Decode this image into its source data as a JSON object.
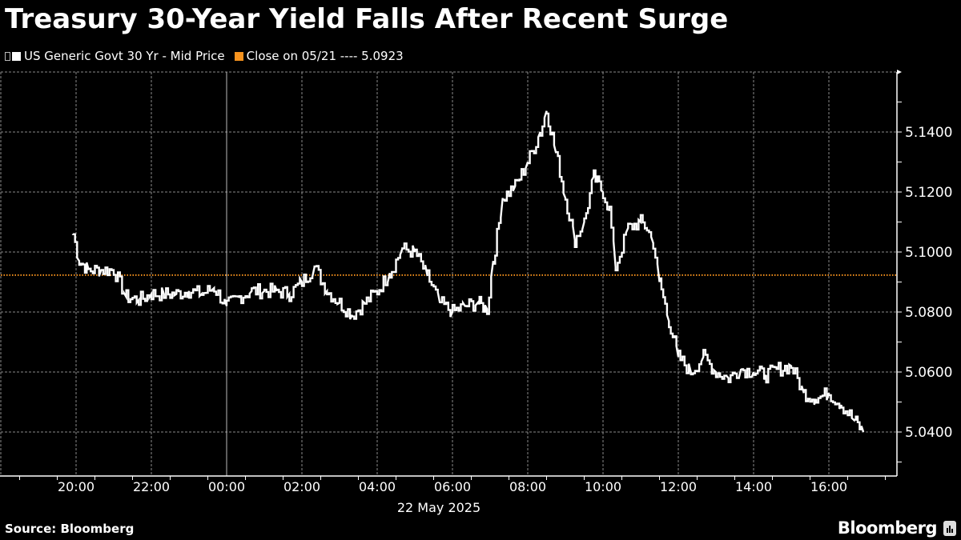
{
  "header": {
    "title": "Treasury 30-Year Yield Falls After Recent Surge"
  },
  "legend": {
    "items": [
      {
        "label": "US Generic Govt 30 Yr - Mid Price",
        "color": "#ffffff"
      },
      {
        "label": "Close on 05/21 ---- 5.0923",
        "color": "#f7931e"
      }
    ]
  },
  "footer": {
    "source": "Source: Bloomberg",
    "brand": "Bloomberg"
  },
  "colors": {
    "background": "#000000",
    "series": "#ffffff",
    "close_line": "#f7931e",
    "grid": "#8a8a8a"
  },
  "chart_data": {
    "type": "line",
    "title": "Treasury 30-Year Yield Falls After Recent Surge",
    "xlabel": "22 May 2025",
    "ylabel": "",
    "y_axis_position": "right",
    "ylim": [
      5.027,
      5.1625
    ],
    "yticks": [
      "5.0400",
      "5.0600",
      "5.0800",
      "5.1000",
      "5.1200",
      "5.1400"
    ],
    "xticks": [
      "20:00",
      "22:00",
      "00:00",
      "02:00",
      "04:00",
      "06:00",
      "08:00",
      "10:00",
      "12:00",
      "14:00",
      "16:00"
    ],
    "date_label": "22 May 2025",
    "grid": true,
    "legend_position": "top-left",
    "reference_line": {
      "label": "Close on 05/21",
      "value": 5.0923,
      "style": "dotted",
      "color": "#f7931e"
    },
    "series": [
      {
        "name": "US Generic Govt 30 Yr - Mid Price",
        "x": [
          "19:55",
          "20:05",
          "20:20",
          "20:40",
          "21:00",
          "21:20",
          "21:40",
          "22:00",
          "22:20",
          "22:40",
          "23:00",
          "23:20",
          "23:40",
          "00:00",
          "00:20",
          "00:40",
          "01:00",
          "01:20",
          "01:40",
          "02:00",
          "02:20",
          "02:40",
          "03:00",
          "03:20",
          "03:40",
          "04:00",
          "04:20",
          "04:40",
          "05:00",
          "05:20",
          "05:40",
          "06:00",
          "06:20",
          "06:40",
          "06:55",
          "07:05",
          "07:20",
          "07:40",
          "08:00",
          "08:20",
          "08:30",
          "08:45",
          "09:00",
          "09:15",
          "09:30",
          "09:45",
          "10:00",
          "10:10",
          "10:20",
          "10:40",
          "11:00",
          "11:10",
          "11:20",
          "11:30",
          "11:45",
          "12:00",
          "12:20",
          "12:40",
          "13:00",
          "13:20",
          "13:40",
          "14:00",
          "14:20",
          "14:40",
          "15:00",
          "15:20",
          "15:40",
          "16:00",
          "16:20",
          "16:40",
          "16:55"
        ],
        "values": [
          5.106,
          5.097,
          5.094,
          5.094,
          5.094,
          5.085,
          5.084,
          5.086,
          5.086,
          5.086,
          5.087,
          5.086,
          5.088,
          5.082,
          5.085,
          5.087,
          5.087,
          5.087,
          5.086,
          5.09,
          5.095,
          5.087,
          5.083,
          5.079,
          5.083,
          5.087,
          5.093,
          5.101,
          5.1,
          5.092,
          5.083,
          5.08,
          5.082,
          5.083,
          5.081,
          5.097,
          5.118,
          5.122,
          5.13,
          5.14,
          5.147,
          5.133,
          5.118,
          5.104,
          5.11,
          5.125,
          5.12,
          5.114,
          5.095,
          5.108,
          5.11,
          5.108,
          5.103,
          5.09,
          5.077,
          5.065,
          5.06,
          5.065,
          5.06,
          5.058,
          5.061,
          5.06,
          5.059,
          5.061,
          5.062,
          5.053,
          5.051,
          5.053,
          5.049,
          5.044,
          5.04
        ]
      }
    ]
  }
}
